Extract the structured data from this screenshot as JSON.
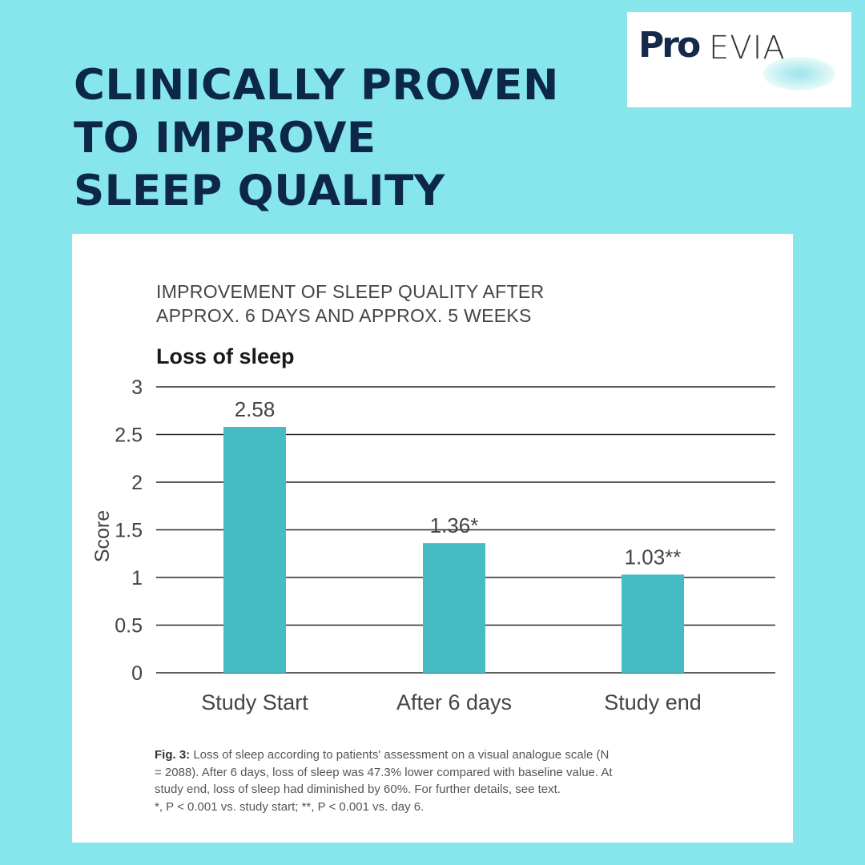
{
  "headline": [
    "CLINICALLY PROVEN",
    "TO IMPROVE",
    "SLEEP QUALITY"
  ],
  "logo": {
    "text": "ProEVIA"
  },
  "colors": {
    "background": "#86e6ec",
    "headline": "#0c2748",
    "bar": "#45bcc4"
  },
  "chart_data": {
    "type": "bar",
    "subtitle": [
      "IMPROVEMENT OF SLEEP QUALITY AFTER",
      "APPROX. 6 DAYS AND APPROX. 5 WEEKS"
    ],
    "title": "Loss of sleep",
    "ylabel": "Score",
    "xlabel": "",
    "ylim": [
      0,
      3
    ],
    "yticks": [
      "0",
      "0.5",
      "1",
      "1.5",
      "2",
      "2.5",
      "3"
    ],
    "grid": true,
    "categories": [
      "Study Start",
      "After 6 days",
      "Study end"
    ],
    "values": [
      2.58,
      1.36,
      1.03
    ],
    "data_labels": [
      "2.58",
      "1.36*",
      "1.03**"
    ]
  },
  "caption": {
    "label": "Fig. 3:",
    "lines": [
      " Loss of sleep according to patients' assessment on a visual analogue scale (N",
      "= 2088). After 6 days, loss of sleep was 47.3% lower compared with baseline value. At",
      "study end, loss of sleep had diminished by 60%. For further details, see text.",
      "*, P < 0.001 vs. study start; **, P < 0.001 vs. day 6."
    ]
  }
}
